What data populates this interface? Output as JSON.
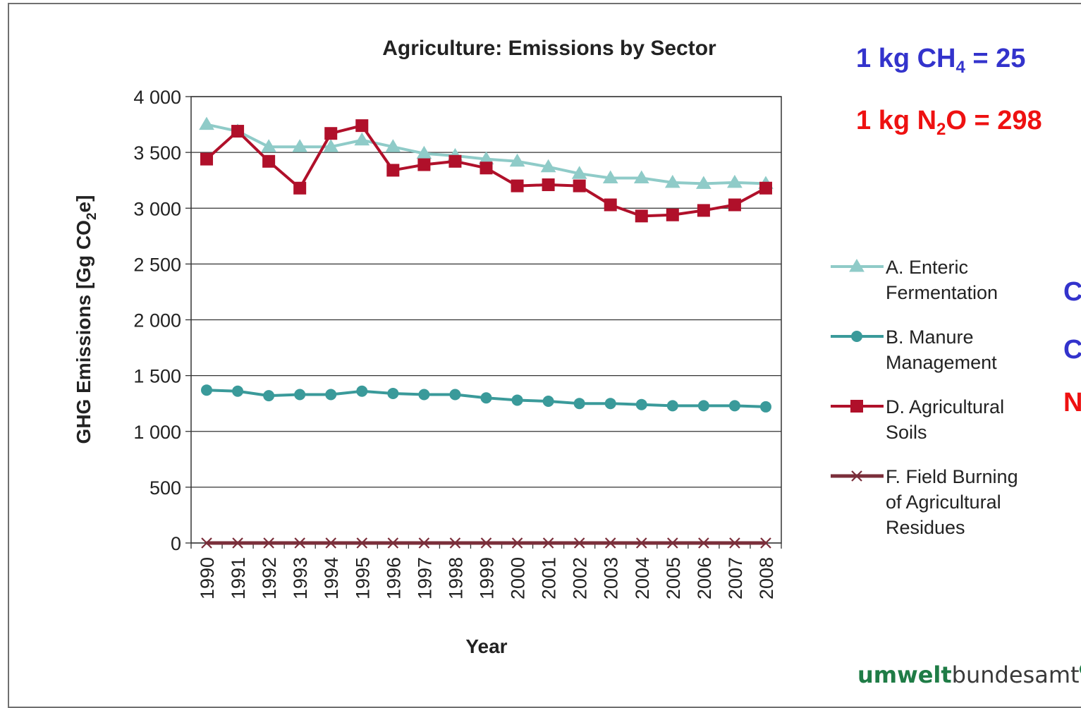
{
  "chart_data": {
    "type": "line",
    "title": "Agriculture: Emissions by Sector",
    "xlabel": "Year",
    "ylabel_parts": [
      "GHG Emissions [Gg CO",
      "2",
      "e]"
    ],
    "ylim": [
      0,
      4000
    ],
    "yticks": [
      0,
      500,
      1000,
      1500,
      2000,
      2500,
      3000,
      3500,
      4000
    ],
    "ytick_labels": [
      "0",
      "500",
      "1 000",
      "1 500",
      "2 000",
      "2 500",
      "3 000",
      "3 500",
      "4 000"
    ],
    "grid": true,
    "legend_position": "right",
    "categories": [
      "1990",
      "1991",
      "1992",
      "1993",
      "1994",
      "1995",
      "1996",
      "1997",
      "1998",
      "1999",
      "2000",
      "2001",
      "2002",
      "2003",
      "2004",
      "2005",
      "2006",
      "2007",
      "2008"
    ],
    "series": [
      {
        "name": "A.  Enteric Fermentation",
        "legend_lines": [
          "A.  Enteric",
          "Fermentation"
        ],
        "color": "#8fcbc8",
        "marker": "triangle",
        "values": [
          3750,
          3690,
          3550,
          3550,
          3550,
          3610,
          3550,
          3490,
          3470,
          3440,
          3420,
          3370,
          3310,
          3270,
          3270,
          3230,
          3220,
          3230,
          3220
        ]
      },
      {
        "name": "B.  Manure Management",
        "legend_lines": [
          "B.  Manure",
          "Management"
        ],
        "color": "#3a9a9a",
        "marker": "circle",
        "values": [
          1370,
          1360,
          1320,
          1330,
          1330,
          1360,
          1340,
          1330,
          1330,
          1300,
          1280,
          1270,
          1250,
          1250,
          1240,
          1230,
          1230,
          1230,
          1220
        ]
      },
      {
        "name": "D.  Agricultural Soils",
        "legend_lines": [
          "D.  Agricultural",
          "Soils"
        ],
        "color": "#b0102a",
        "marker": "square",
        "values": [
          3440,
          3690,
          3420,
          3180,
          3670,
          3740,
          3340,
          3390,
          3420,
          3360,
          3200,
          3210,
          3200,
          3030,
          2930,
          2940,
          2980,
          3030,
          3180
        ]
      },
      {
        "name": "F.  Field Burning of Agricultural Residues",
        "legend_lines": [
          "F.  Field Burning",
          "of Agricultural",
          "Residues"
        ],
        "color": "#7a2e3a",
        "marker": "x",
        "values": [
          0,
          0,
          0,
          0,
          0,
          0,
          0,
          0,
          0,
          0,
          0,
          0,
          0,
          0,
          0,
          0,
          0,
          0,
          0
        ]
      }
    ]
  },
  "notes": {
    "ch4": {
      "pre": "1 kg CH",
      "sub": "4",
      "post": " = 25",
      "color": "#3333cc"
    },
    "n2o": {
      "pre": "1 kg N",
      "sub": "2",
      "post": "O = 298",
      "color": "#ee1111"
    }
  },
  "side_labels": [
    {
      "text": "C",
      "color": "#3333cc"
    },
    {
      "text": "C",
      "color": "#3333cc"
    },
    {
      "text": "N",
      "color": "#ee1111"
    }
  ],
  "logo": {
    "bold": "umwelt",
    "regular": "bundesamt",
    "mark": "U"
  }
}
